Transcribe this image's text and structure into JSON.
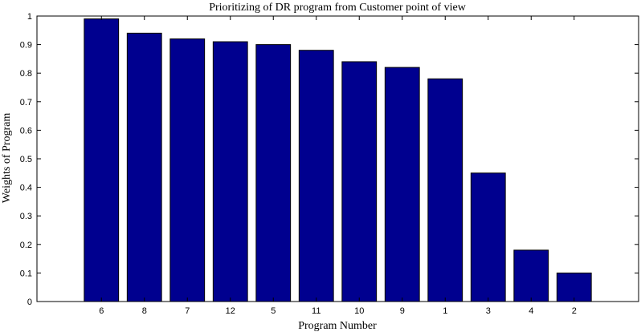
{
  "chart_data": {
    "type": "bar",
    "title": "Prioritizing of DR program from Customer point of view",
    "xlabel": "Program Number",
    "ylabel": "Weights of Program",
    "categories": [
      "6",
      "8",
      "7",
      "12",
      "5",
      "11",
      "10",
      "9",
      "1",
      "3",
      "4",
      "2"
    ],
    "values": [
      0.99,
      0.94,
      0.92,
      0.91,
      0.9,
      0.88,
      0.84,
      0.82,
      0.78,
      0.45,
      0.18,
      0.1
    ],
    "ylim": [
      0,
      1
    ],
    "yticks": [
      "0",
      "0.1",
      "0.2",
      "0.3",
      "0.4",
      "0.5",
      "0.6",
      "0.7",
      "0.8",
      "0.9",
      "1"
    ],
    "grid": false,
    "legend": "none",
    "bar_color": "#00008F",
    "bar_edge_color": "#000000",
    "axis_color": "#000000"
  }
}
